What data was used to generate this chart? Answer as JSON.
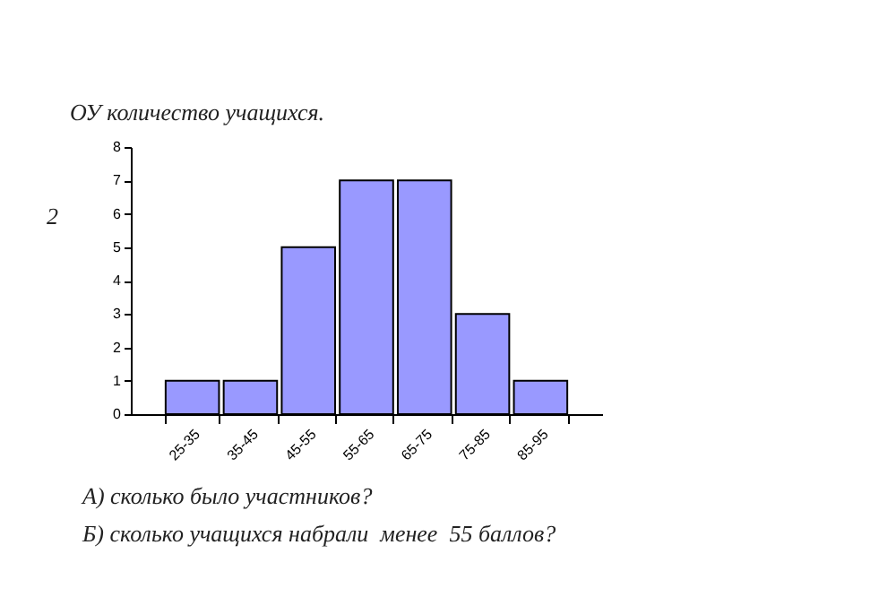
{
  "chart_data": {
    "type": "bar",
    "title": "ОУ количество учащихся.",
    "categories": [
      "25-35",
      "35-45",
      "45-55",
      "55-65",
      "65-75",
      "75-85",
      "85-95",
      null
    ],
    "values": [
      1,
      1,
      5,
      7,
      7,
      3,
      1,
      null
    ],
    "color": "#9999ff",
    "ylim": [
      0,
      8
    ],
    "yticks": [
      0,
      1,
      2,
      3,
      4,
      5,
      6,
      7,
      8
    ],
    "grid": false,
    "annotations": [
      "2",
      "А) сколько было участников?",
      "Б) сколько учащихся набрали  менее  55 баллов?"
    ]
  }
}
